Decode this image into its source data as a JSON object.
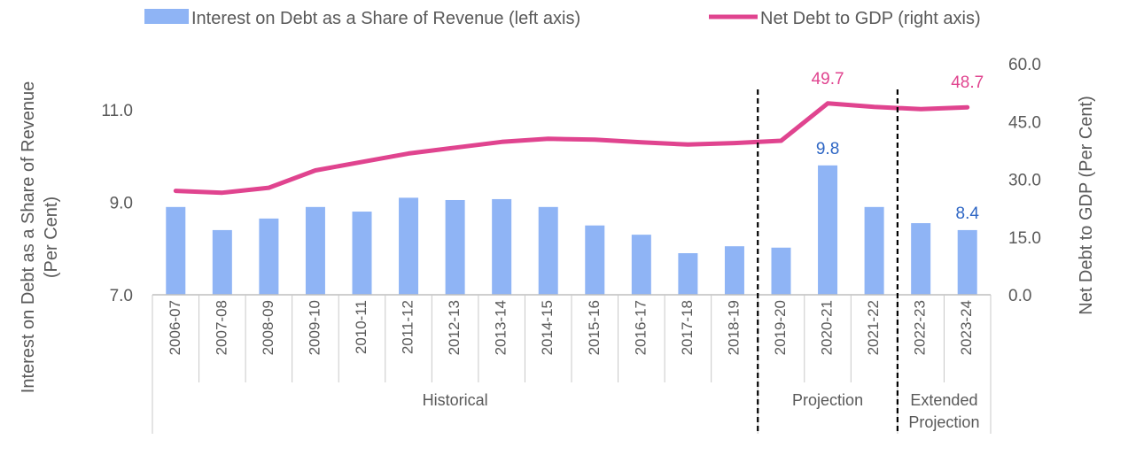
{
  "chart_data": {
    "type": "bar",
    "categories": [
      "2006-07",
      "2007-08",
      "2008-09",
      "2009-10",
      "2010-11",
      "2011-12",
      "2012-13",
      "2013-14",
      "2014-15",
      "2015-16",
      "2016-17",
      "2017-18",
      "2018-19",
      "2019-20",
      "2020-21",
      "2021-22",
      "2022-23",
      "2023-24"
    ],
    "series": [
      {
        "name": "Interest on Debt as a Share of Revenue (left axis)",
        "type": "bar",
        "axis": "left",
        "color": "#8fb4f5",
        "values": [
          8.9,
          8.4,
          8.65,
          8.9,
          8.8,
          9.1,
          9.05,
          9.07,
          8.9,
          8.5,
          8.3,
          7.9,
          8.05,
          8.02,
          9.8,
          8.9,
          8.55,
          8.4
        ]
      },
      {
        "name": "Net Debt to GDP (right axis)",
        "type": "line",
        "axis": "right",
        "color": "#e0448f",
        "values": [
          27.0,
          26.5,
          27.8,
          32.3,
          34.5,
          36.7,
          38.2,
          39.7,
          40.5,
          40.3,
          39.6,
          39.0,
          39.4,
          40.0,
          49.7,
          48.8,
          48.2,
          48.7
        ]
      }
    ],
    "data_labels": [
      {
        "series": 0,
        "index": 14,
        "text": "9.8"
      },
      {
        "series": 0,
        "index": 17,
        "text": "8.4"
      },
      {
        "series": 1,
        "index": 14,
        "text": "49.7"
      },
      {
        "series": 1,
        "index": 17,
        "text": "48.7"
      }
    ],
    "y_left": {
      "min": 7.0,
      "max": 12.0,
      "ticks": [
        "7.0",
        "9.0",
        "11.0"
      ],
      "tick_values": [
        7.0,
        9.0,
        11.0
      ]
    },
    "y_right": {
      "min": 0,
      "max": 60,
      "ticks": [
        "0.0",
        "15.0",
        "30.0",
        "45.0",
        "60.0"
      ],
      "tick_values": [
        0,
        15,
        30,
        45,
        60
      ]
    },
    "ylabel_left": [
      "Interest on Debt as a Share of Revenue",
      "(Per Cent)"
    ],
    "ylabel_right": "Net Debt to GDP (Per Cent)",
    "groups": [
      {
        "lines": [
          "Historical"
        ],
        "start": 0,
        "end": 12
      },
      {
        "lines": [
          "Projection"
        ],
        "start": 13,
        "end": 15
      },
      {
        "lines": [
          "Extended",
          "Projection"
        ],
        "start": 16,
        "end": 17
      }
    ],
    "divider_after_index": [
      12,
      15
    ],
    "label_colors": {
      "bar": "#2e66c4",
      "line": "#e0448f"
    },
    "legend": {
      "position": "top",
      "entries": [
        "Interest on Debt as a Share of Revenue (left axis)",
        "Net Debt to GDP (right axis)"
      ]
    },
    "grid": false
  }
}
